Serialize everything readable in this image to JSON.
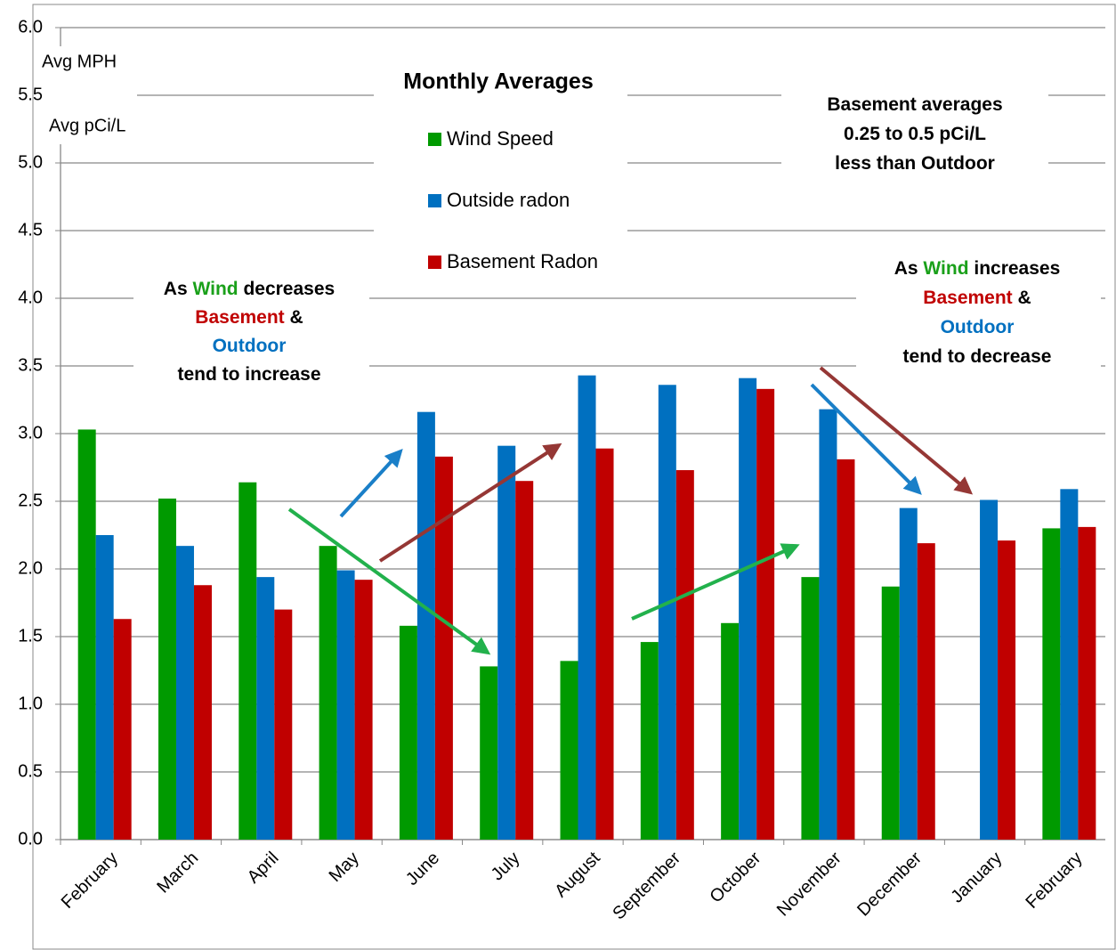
{
  "chart_data": {
    "type": "bar",
    "title": "Monthly Averages",
    "y_labels": [
      "Avg MPH",
      "Avg pCi/L"
    ],
    "categories": [
      "February",
      "March",
      "April",
      "May",
      "June",
      "July",
      "August",
      "September",
      "October",
      "November",
      "December",
      "January",
      "February"
    ],
    "series": [
      {
        "name": "Wind Speed",
        "color": "#009a00",
        "values": [
          3.03,
          2.52,
          2.64,
          2.17,
          1.58,
          1.28,
          1.32,
          1.46,
          1.6,
          1.94,
          1.87,
          null,
          2.3
        ]
      },
      {
        "name": "Outside radon",
        "color": "#0070c0",
        "values": [
          2.25,
          2.17,
          1.94,
          1.99,
          3.16,
          2.91,
          3.43,
          3.36,
          3.41,
          3.18,
          2.45,
          2.51,
          2.59
        ]
      },
      {
        "name": "Basement Radon",
        "color": "#c00000",
        "values": [
          1.63,
          1.88,
          1.7,
          1.92,
          2.83,
          2.65,
          2.89,
          2.73,
          3.33,
          2.81,
          2.19,
          2.21,
          2.31
        ]
      }
    ],
    "ylim": [
      0,
      6
    ],
    "yticks": [
      {
        "value": 0,
        "label": "0.0"
      },
      {
        "value": 0.5,
        "label": "0.5"
      },
      {
        "value": 1,
        "label": "1.0"
      },
      {
        "value": 1.5,
        "label": "1.5"
      },
      {
        "value": 2,
        "label": "2.0"
      },
      {
        "value": 2.5,
        "label": "2.5"
      },
      {
        "value": 3,
        "label": "3.0"
      },
      {
        "value": 3.5,
        "label": "3.5"
      },
      {
        "value": 4,
        "label": "4.0"
      },
      {
        "value": 4.5,
        "label": "4.5"
      },
      {
        "value": 5,
        "label": "5.0"
      },
      {
        "value": 5.5,
        "label": "5.5"
      },
      {
        "value": 6,
        "label": "6.0"
      }
    ],
    "grid": true,
    "annotations": [
      {
        "lines": [
          [
            {
              "text": "As ",
              "color": "#000000"
            },
            {
              "text": "Wind",
              "color": "#1aa01a"
            },
            {
              "text": " decreases",
              "color": "#000000"
            }
          ],
          [
            {
              "text": "Basement",
              "color": "#c00000"
            },
            {
              "text": " &",
              "color": "#000000"
            }
          ],
          [
            {
              "text": "Outdoor",
              "color": "#0070c0"
            }
          ],
          [
            {
              "text": "tend to increase",
              "color": "#000000"
            }
          ]
        ]
      },
      {
        "lines": [
          [
            {
              "text": "Basement averages",
              "color": "#000000"
            }
          ],
          [
            {
              "text": "0.25 to 0.5 pCi/L",
              "color": "#000000"
            }
          ],
          [
            {
              "text": "less than Outdoor",
              "color": "#000000"
            }
          ]
        ]
      },
      {
        "lines": [
          [
            {
              "text": "As ",
              "color": "#000000"
            },
            {
              "text": "Wind",
              "color": "#1aa01a"
            },
            {
              "text": " increases",
              "color": "#000000"
            }
          ],
          [
            {
              "text": "Basement",
              "color": "#c00000"
            },
            {
              "text": " &",
              "color": "#000000"
            }
          ],
          [
            {
              "text": "Outdoor",
              "color": "#0070c0"
            }
          ],
          [
            {
              "text": "tend to decrease",
              "color": "#000000"
            }
          ]
        ]
      }
    ]
  }
}
